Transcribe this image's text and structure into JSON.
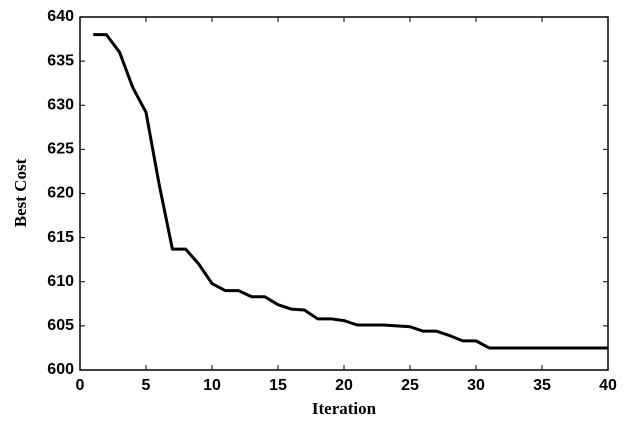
{
  "chart_data": {
    "type": "line",
    "x_label": "Iteration",
    "y_label": "Best Cost",
    "x": [
      1,
      2,
      3,
      4,
      5,
      6,
      7,
      8,
      9,
      10,
      11,
      12,
      13,
      14,
      15,
      16,
      17,
      18,
      19,
      20,
      21,
      22,
      23,
      24,
      25,
      26,
      27,
      28,
      29,
      30,
      31,
      32,
      33,
      34,
      35,
      36,
      37,
      38,
      39,
      40
    ],
    "values": [
      638,
      638,
      636,
      632,
      629.2,
      621,
      613.7,
      613.7,
      612,
      609.8,
      609,
      609,
      608.3,
      608.3,
      607.4,
      606.9,
      606.8,
      605.8,
      605.8,
      605.6,
      605.1,
      605.1,
      605.1,
      605,
      604.9,
      604.4,
      604.4,
      603.9,
      603.3,
      603.3,
      602.5,
      602.5,
      602.5,
      602.5,
      602.5,
      602.5,
      602.5,
      602.5,
      602.5,
      602.5
    ],
    "color": "#000000",
    "xlim": [
      0,
      40
    ],
    "xticks": [
      0,
      5,
      10,
      15,
      20,
      25,
      30,
      35,
      40
    ],
    "ylim": [
      600,
      640
    ],
    "yticks": [
      600,
      605,
      610,
      615,
      620,
      625,
      630,
      635,
      640
    ],
    "grid": false
  }
}
